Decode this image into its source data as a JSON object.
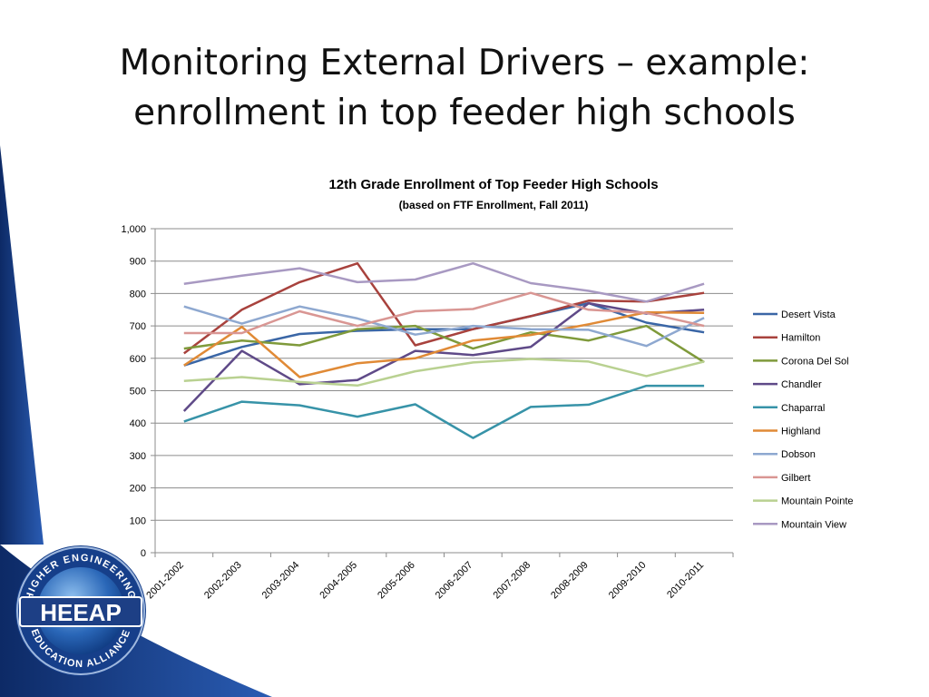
{
  "slide": {
    "title_line1": "Monitoring External Drivers – example:",
    "title_line2": "enrollment in top feeder high schools"
  },
  "logo": {
    "text": "HEEAP",
    "ring_text": "HIGHER ENGINEERING EDUCATION ALLIANCE"
  },
  "colors": {
    "band_blue": "#1f4fa0",
    "band_dark": "#0d2a66"
  },
  "chart_data": {
    "type": "line",
    "title": "12th Grade Enrollment of Top Feeder High Schools",
    "subtitle": "(based on FTF Enrollment, Fall 2011)",
    "ylim": [
      0,
      1000
    ],
    "yticks": [
      0,
      100,
      200,
      300,
      400,
      500,
      600,
      700,
      800,
      900,
      1000
    ],
    "ytick_labels": [
      "0",
      "100",
      "200",
      "300",
      "400",
      "500",
      "600",
      "700",
      "800",
      "900",
      "1,000"
    ],
    "grid": true,
    "legend": "right",
    "categories": [
      "2001-2002",
      "2002-2003",
      "2003-2004",
      "2004-2005",
      "2005-2006",
      "2006-2007",
      "2007-2008",
      "2008-2009",
      "2009-2010",
      "2010-2011"
    ],
    "series": [
      {
        "name": "Desert Vista",
        "color": "#3a66a6",
        "values": [
          578,
          635,
          675,
          685,
          690,
          690,
          730,
          770,
          710,
          680
        ]
      },
      {
        "name": "Hamilton",
        "color": "#a8423d",
        "values": [
          615,
          750,
          835,
          893,
          640,
          690,
          730,
          778,
          775,
          802
        ]
      },
      {
        "name": "Corona Del Sol",
        "color": "#7f9a3b",
        "values": [
          630,
          655,
          640,
          690,
          700,
          630,
          680,
          655,
          700,
          588
        ]
      },
      {
        "name": "Chandler",
        "color": "#5f4a88",
        "values": [
          437,
          623,
          520,
          533,
          623,
          610,
          635,
          770,
          738,
          750
        ]
      },
      {
        "name": "Chaparral",
        "color": "#3793a8",
        "values": [
          405,
          466,
          455,
          420,
          458,
          354,
          450,
          457,
          515,
          515
        ]
      },
      {
        "name": "Highland",
        "color": "#e08a36",
        "values": [
          578,
          697,
          542,
          585,
          600,
          655,
          672,
          705,
          742,
          740
        ]
      },
      {
        "name": "Dobson",
        "color": "#8ea8d0",
        "values": [
          760,
          707,
          760,
          723,
          673,
          700,
          690,
          688,
          638,
          725
        ]
      },
      {
        "name": "Gilbert",
        "color": "#d99693",
        "values": [
          678,
          678,
          745,
          700,
          745,
          752,
          802,
          750,
          740,
          700
        ]
      },
      {
        "name": "Mountain Pointe",
        "color": "#b9d191",
        "values": [
          530,
          542,
          527,
          516,
          560,
          587,
          598,
          590,
          545,
          590
        ]
      },
      {
        "name": "Mountain View",
        "color": "#a899c2",
        "values": [
          830,
          855,
          878,
          835,
          843,
          893,
          832,
          808,
          775,
          830
        ]
      }
    ]
  }
}
